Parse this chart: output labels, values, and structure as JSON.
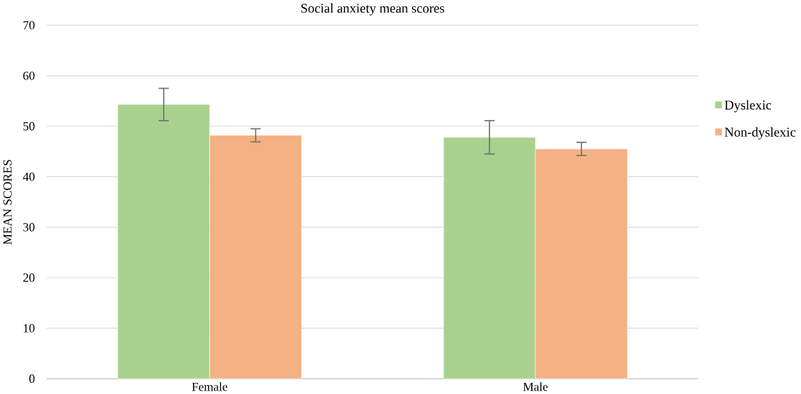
{
  "chart_data": {
    "type": "bar",
    "title": "Social anxiety mean scores",
    "ylabel": "MEAN SCORES",
    "categories": [
      "Female",
      "Male"
    ],
    "series": [
      {
        "name": "Dyslexic",
        "color": "#a9d18e",
        "values": [
          54.3,
          47.8
        ],
        "errors": [
          3.2,
          3.3
        ]
      },
      {
        "name": "Non-dyslexic",
        "color": "#f4b183",
        "values": [
          48.2,
          45.5
        ],
        "errors": [
          1.3,
          1.3
        ]
      }
    ],
    "ylim": [
      0,
      70
    ],
    "yticks": [
      0,
      10,
      20,
      30,
      40,
      50,
      60,
      70
    ],
    "grid": "y",
    "legend": "right"
  }
}
